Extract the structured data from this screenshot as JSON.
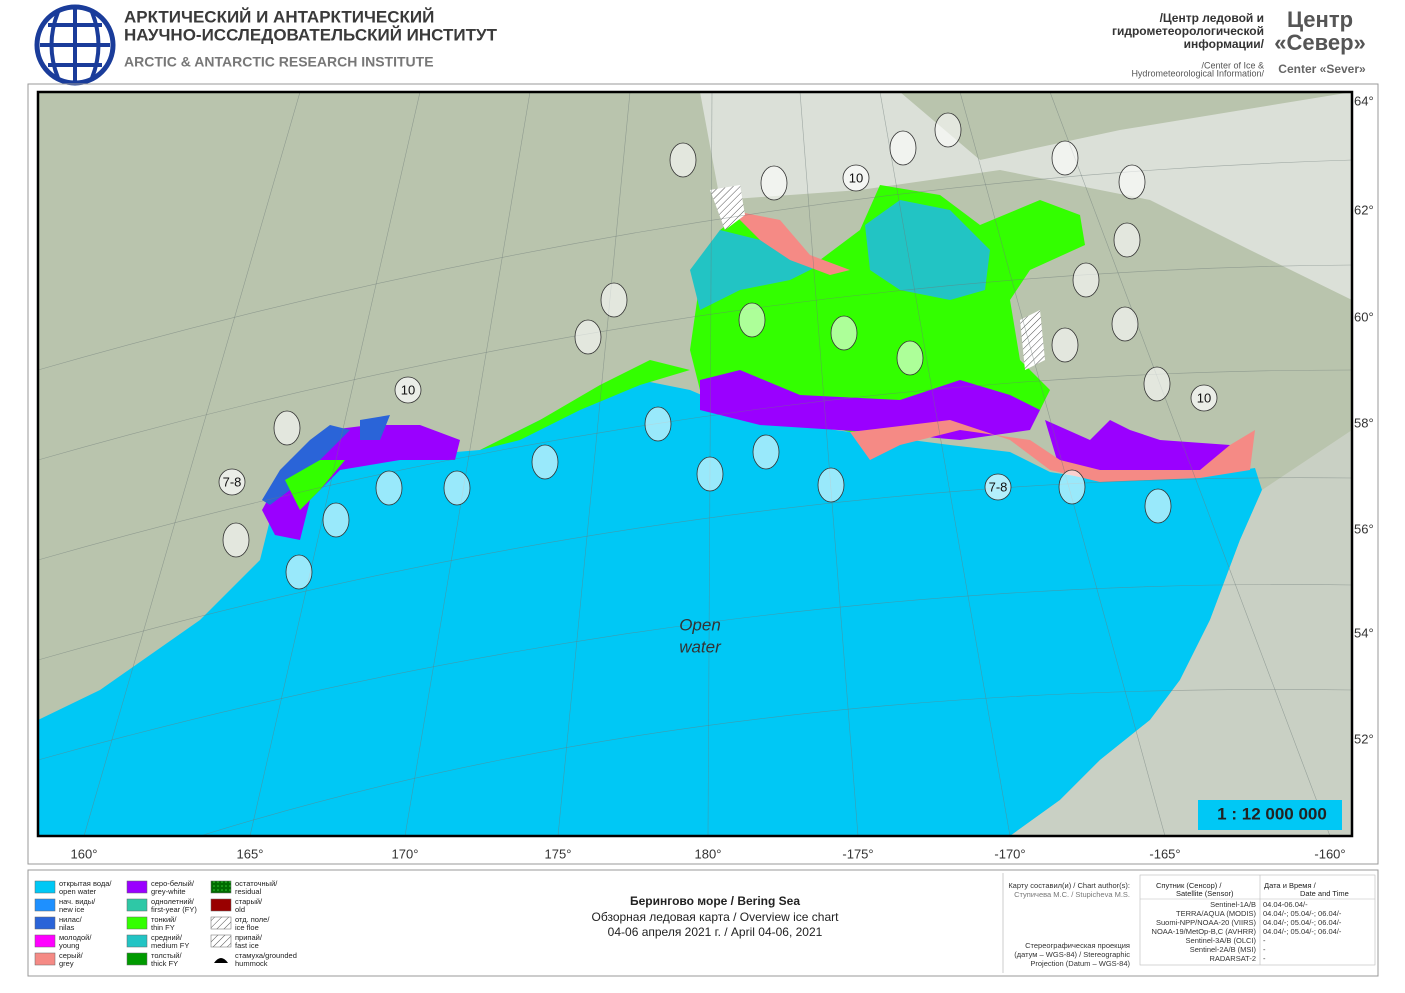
{
  "header": {
    "ru_title": [
      "АРКТИЧЕСКИЙ И АНТАРКТИЧЕСКИЙ",
      "НАУЧНО-ИССЛЕДОВАТЕЛЬСКИЙ ИНСТИТУТ"
    ],
    "en_title": "ARCTIC & ANTARCTIC RESEARCH INSTITUTE",
    "center_ru": [
      "/Центр ледовой и",
      "гидрометеорологической",
      "информации/"
    ],
    "center_en": [
      "/Center of Ice &",
      "Hydrometeorological Information/"
    ],
    "sever_ru": [
      "Центр",
      "«Север»"
    ],
    "sever_en": "Center «Sever»"
  },
  "map": {
    "lon_labels": [
      "160°",
      "165°",
      "170°",
      "175°",
      "180°",
      "-175°",
      "-170°",
      "-165°",
      "-160°"
    ],
    "lat_labels": [
      "64°",
      "62°",
      "60°",
      "58°",
      "56°",
      "54°",
      "52°"
    ],
    "open_water": [
      "Open",
      "water"
    ],
    "scale": "1 : 12 000 000",
    "big_labels": [
      "10",
      "10",
      "10",
      "7-8",
      "7-8"
    ]
  },
  "legend": [
    {
      "lines": [
        "открытая вода/",
        "open water"
      ],
      "color": "#00c8f5",
      "pattern": "solid"
    },
    {
      "lines": [
        "нач. виды/",
        "new ice"
      ],
      "color": "#1e90ff",
      "pattern": "solid"
    },
    {
      "lines": [
        "нилас/",
        "nilas"
      ],
      "color": "#2a64d8",
      "pattern": "solid"
    },
    {
      "lines": [
        "молодой/",
        "young"
      ],
      "color": "#ff00ff",
      "pattern": "solid"
    },
    {
      "lines": [
        "серый/",
        "grey"
      ],
      "color": "#f58a85",
      "pattern": "solid"
    },
    {
      "lines": [
        "серо-белый/",
        "grey-white"
      ],
      "color": "#9a00ff",
      "pattern": "solid"
    },
    {
      "lines": [
        "однолетний/",
        "first-year (FY)"
      ],
      "color": "#2ec8a6",
      "pattern": "solid"
    },
    {
      "lines": [
        "тонкий/",
        "thin FY"
      ],
      "color": "#33ff00",
      "pattern": "solid"
    },
    {
      "lines": [
        "средний/",
        "medium FY"
      ],
      "color": "#22c4c4",
      "pattern": "solid"
    },
    {
      "lines": [
        "толстый/",
        "thick FY"
      ],
      "color": "#009a00",
      "pattern": "solid"
    },
    {
      "lines": [
        "остаточный/",
        "residual"
      ],
      "color": "#006a00",
      "pattern": "dots"
    },
    {
      "lines": [
        "старый/",
        "old"
      ],
      "color": "#990000",
      "pattern": "solid"
    },
    {
      "lines": [
        "отд. поле/",
        "ice floe"
      ],
      "color": "#ffffff",
      "pattern": "hatch"
    },
    {
      "lines": [
        "припай/",
        "fast ice"
      ],
      "color": "#ffffff",
      "pattern": "hatch"
    },
    {
      "lines": [
        "стамуха/grounded",
        "hummock"
      ],
      "color": "#000000",
      "pattern": "hummock"
    }
  ],
  "title": [
    "Берингово море / Bering Sea",
    "Обзорная ледовая карта / Overview ice chart",
    "04-06 апреля 2021 г. / April 04-06, 2021"
  ],
  "author": [
    "Карту составил(и) / Chart author(s):",
    "Ступичева М.С. / Stupicheva M.S."
  ],
  "projection": [
    "Стереографическая проекция",
    "(датум – WGS-84) / Stereographic",
    "Projection (Datum – WGS-84)"
  ],
  "satellites": {
    "header": [
      [
        "Спутник (Сенсор) /",
        "Satellite (Sensor)"
      ],
      [
        "Дата и Время /",
        "Date and Time"
      ]
    ],
    "rows": [
      [
        "Sentinel-1A/B",
        "04.04-06.04/-"
      ],
      [
        "TERRA/AQUA (MODIS)",
        "04.04/-; 05.04/-; 06.04/-"
      ],
      [
        "Suomi-NPP/NOAA-20 (VIIRS)",
        "04.04/-; 05.04/-; 06.04/-"
      ],
      [
        "NOAA-19/MetOp-B,C (AVHRR)",
        "04.04/-; 05.04/-; 06.04/-"
      ],
      [
        "Sentinel-3A/B (OLCI)",
        "-"
      ],
      [
        "Sentinel-2A/B (MSI)",
        "-"
      ],
      [
        "RADARSAT-2",
        "-"
      ]
    ]
  }
}
